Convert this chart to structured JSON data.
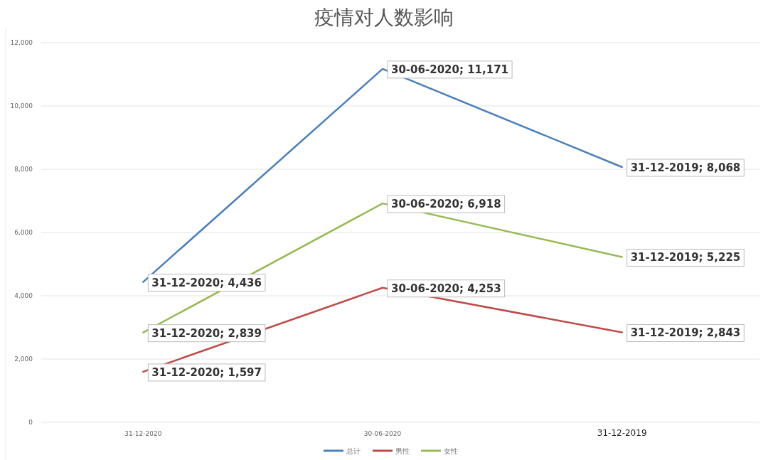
{
  "chart_data": {
    "type": "line",
    "title": "疫情对人数影响",
    "categories": [
      "31-12-2020",
      "30-06-2020",
      "31-12-2019"
    ],
    "series": [
      {
        "name": "总计",
        "color": "#4a7ebb",
        "values": [
          4436,
          11171,
          8068
        ],
        "value_labels": [
          "31-12-2020; 4,436",
          "30-06-2020; 11,171",
          "31-12-2019; 8,068"
        ]
      },
      {
        "name": "男性",
        "color": "#be4b48",
        "values": [
          1597,
          4253,
          2843
        ],
        "value_labels": [
          "31-12-2020; 1,597",
          "30-06-2020; 4,253",
          "31-12-2019; 2,843"
        ]
      },
      {
        "name": "女性",
        "color": "#98b954",
        "values": [
          2839,
          6918,
          5225
        ],
        "value_labels": [
          "31-12-2020; 2,839",
          "30-06-2020; 6,918",
          "31-12-2019; 5,225"
        ]
      }
    ],
    "ylim": [
      0,
      12000
    ],
    "yticks": [
      {
        "value": 0,
        "label": "0"
      },
      {
        "value": 2000,
        "label": "2,000"
      },
      {
        "value": 4000,
        "label": "4,000"
      },
      {
        "value": 6000,
        "label": "6,000"
      },
      {
        "value": 8000,
        "label": "8,000"
      },
      {
        "value": 10000,
        "label": "10,000"
      },
      {
        "value": 12000,
        "label": "12,000"
      }
    ],
    "grid": "y",
    "legend": "bottom",
    "marker": "none",
    "line_style": "solid"
  }
}
